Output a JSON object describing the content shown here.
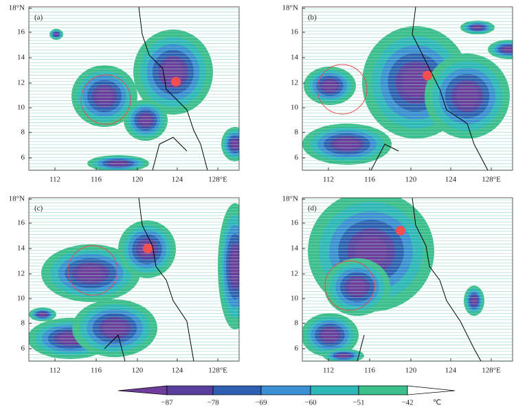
{
  "panels": [
    {
      "label": "(a)",
      "lat_ticks": [
        "18°N",
        "16",
        "14",
        "12",
        "10",
        "8",
        "6"
      ],
      "lon_ticks": [
        "112",
        "116",
        "120",
        "124",
        "128°E"
      ]
    },
    {
      "label": "(b)",
      "lat_ticks": [
        "18°N",
        "16",
        "14",
        "12",
        "10",
        "8",
        "6"
      ],
      "lon_ticks": [
        "112",
        "116",
        "120",
        "124",
        "128°E"
      ]
    },
    {
      "label": "(c)",
      "lat_ticks": [
        "18°N",
        "16",
        "14",
        "12",
        "10",
        "8",
        "6"
      ],
      "lon_ticks": [
        "112",
        "116",
        "120",
        "124",
        "128°E"
      ]
    },
    {
      "label": "(d)",
      "lat_ticks": [
        "18°N",
        "16",
        "14",
        "12",
        "10",
        "8",
        "6"
      ],
      "lon_ticks": [
        "112",
        "116",
        "120",
        "124",
        "128°E"
      ]
    }
  ],
  "colorbar": {
    "ticks": [
      "−87",
      "−78",
      "−69",
      "−60",
      "−51",
      "−42"
    ],
    "unit": "℃"
  }
}
